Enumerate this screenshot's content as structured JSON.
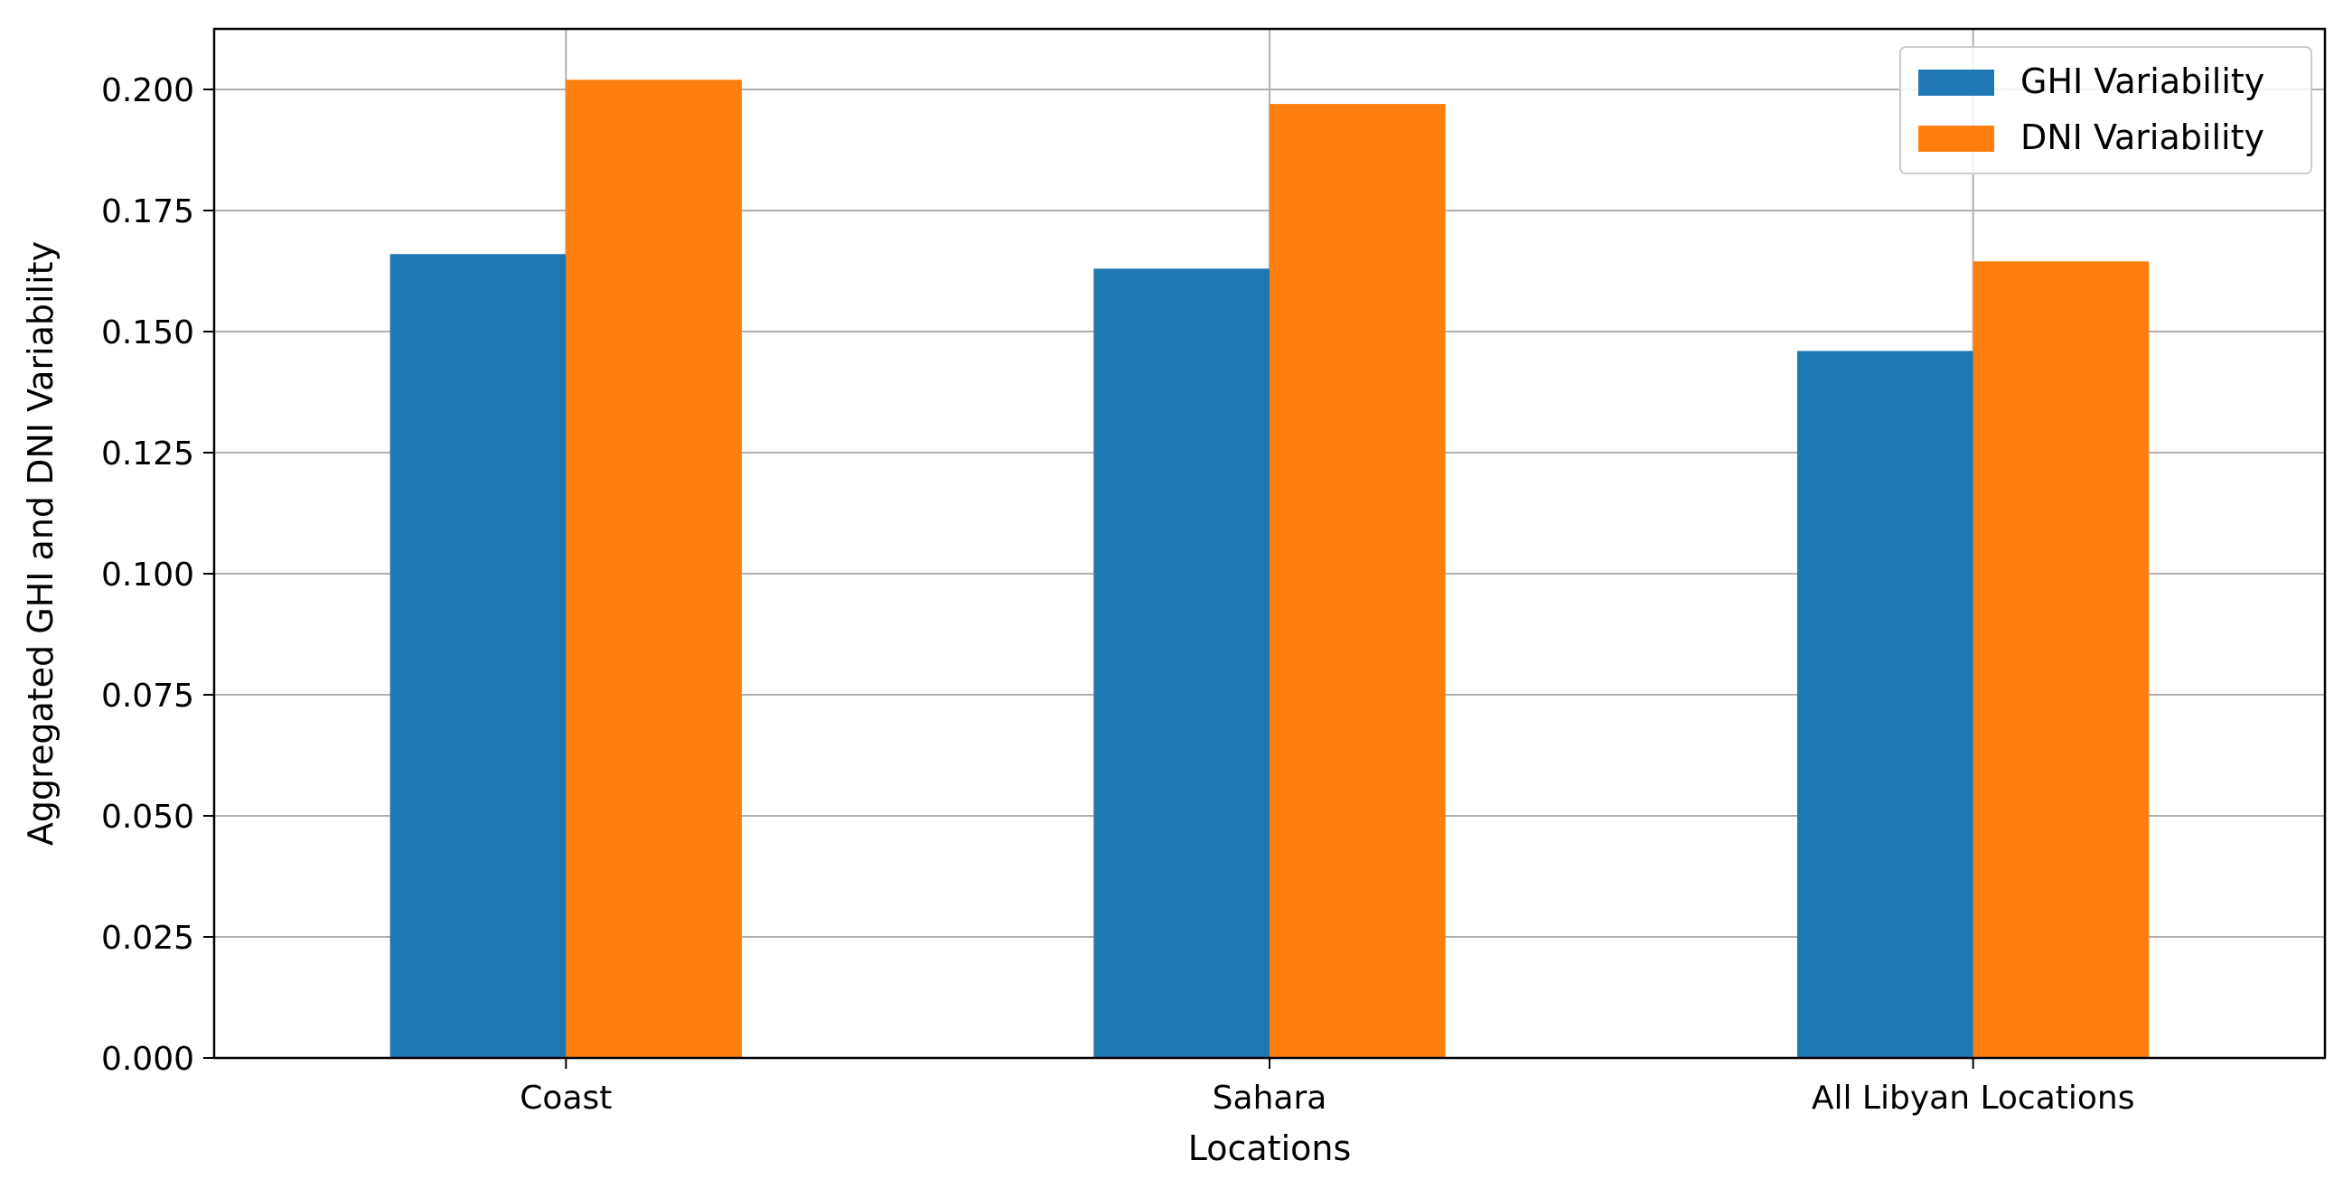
{
  "chart_data": {
    "type": "bar",
    "categories": [
      "Coast",
      "Sahara",
      "All Libyan Locations"
    ],
    "series": [
      {
        "name": "GHI Variability",
        "color": "#1f77b4",
        "values": [
          0.166,
          0.163,
          0.146
        ]
      },
      {
        "name": "DNI Variability",
        "color": "#ff7f0e",
        "values": [
          0.202,
          0.197,
          0.1645
        ]
      }
    ],
    "title": "",
    "xlabel": "Locations",
    "ylabel": "Aggregated GHI and DNI Variability",
    "ylim": [
      0,
      0.2125
    ],
    "yticks": [
      "0.000",
      "0.025",
      "0.050",
      "0.075",
      "0.100",
      "0.125",
      "0.150",
      "0.175",
      "0.200"
    ],
    "grid": true,
    "legend_position": "top-right"
  }
}
